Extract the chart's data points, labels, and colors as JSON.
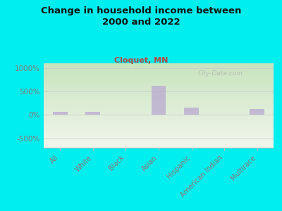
{
  "title": "Change in household income between\n2000 and 2022",
  "subtitle": "Cloquet, MN",
  "watermark": "City-Data.com",
  "categories": [
    "All",
    "White",
    "Black",
    "Asian",
    "Hispanic",
    "American Indian",
    "Multirace"
  ],
  "values": [
    60,
    65,
    0,
    620,
    160,
    0,
    120
  ],
  "bar_color": "#b8a8d0",
  "bar_color_alpha": 0.75,
  "background_top": "#c8e8c0",
  "background_bottom": "#f0f4e8",
  "bg_outer": "#00eeee",
  "title_color": "#111111",
  "subtitle_color": "#bb4444",
  "tick_label_color": "#887777",
  "watermark_color": "#aaaaaa",
  "ylim": [
    -700,
    1100
  ],
  "yticks": [
    -500,
    0,
    500,
    1000
  ],
  "ytick_labels": [
    "-500%",
    "0%",
    "500%",
    "1000%"
  ]
}
